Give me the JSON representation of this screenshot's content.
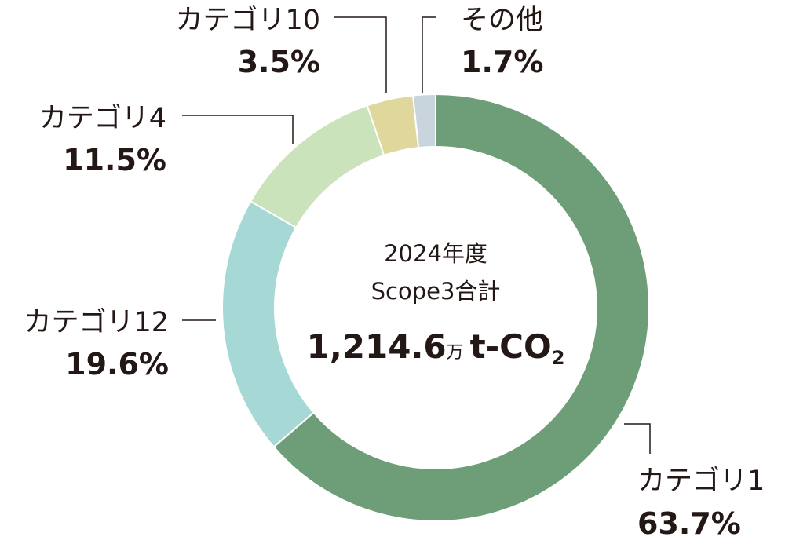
{
  "chart_data": {
    "type": "donut",
    "categories": [
      "カテゴリ1",
      "カテゴリ12",
      "カテゴリ4",
      "カテゴリ10",
      "その他"
    ],
    "values": [
      63.7,
      19.6,
      11.5,
      3.5,
      1.7
    ],
    "value_labels": [
      "63.7%",
      "19.6%",
      "11.5%",
      "3.5%",
      "1.7%"
    ],
    "colors": [
      "#6d9e78",
      "#a6d8d6",
      "#cbe3ba",
      "#e0d79c",
      "#c9d5dc"
    ],
    "center_label": {
      "year": "2024年度",
      "scope": "Scope3合計",
      "total": "1,214.6",
      "unit": "万",
      "gas": "t-CO",
      "subscript": "2"
    }
  }
}
